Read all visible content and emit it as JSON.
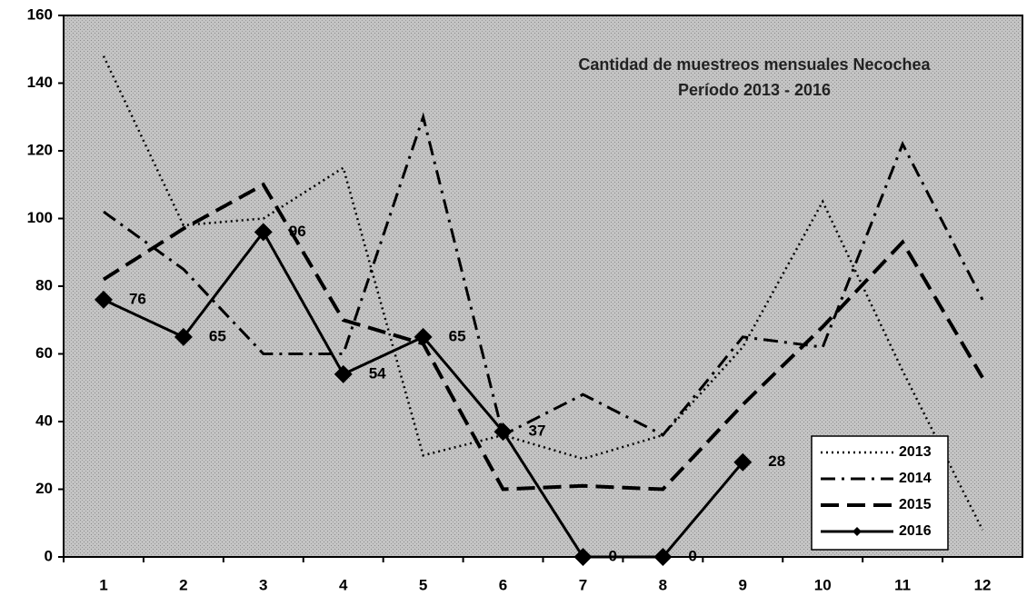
{
  "chart_data": {
    "type": "line",
    "title": [
      "Cantidad de muestreos mensuales Necochea",
      "Período 2013 - 2016"
    ],
    "categories": [
      "1",
      "2",
      "3",
      "4",
      "5",
      "6",
      "7",
      "8",
      "9",
      "10",
      "11",
      "12"
    ],
    "ylim": [
      0,
      160
    ],
    "yticks": [
      0,
      20,
      40,
      60,
      80,
      100,
      120,
      140,
      160
    ],
    "legend": "bottom-right",
    "series": [
      {
        "name": "2013",
        "color": "#000000",
        "dash": "2,4",
        "width": 2.5,
        "values": [
          148,
          98,
          100,
          115,
          30,
          36,
          29,
          36,
          62,
          105,
          55,
          8
        ]
      },
      {
        "name": "2014",
        "color": "#000000",
        "dash": "16,7,3,7",
        "width": 3,
        "values": [
          102,
          85,
          60,
          60,
          130,
          36,
          48,
          36,
          65,
          62,
          122,
          76
        ]
      },
      {
        "name": "2015",
        "color": "#000000",
        "dash": "20,9",
        "width": 4,
        "values": [
          82,
          97,
          110,
          70,
          63,
          20,
          21,
          20,
          45,
          68,
          93,
          53
        ]
      },
      {
        "name": "2016",
        "color": "#000000",
        "width": 3,
        "marker": "diamond",
        "data_labels": true,
        "values": [
          76,
          65,
          96,
          54,
          65,
          37,
          0,
          0,
          28,
          null,
          null,
          null
        ]
      }
    ]
  }
}
